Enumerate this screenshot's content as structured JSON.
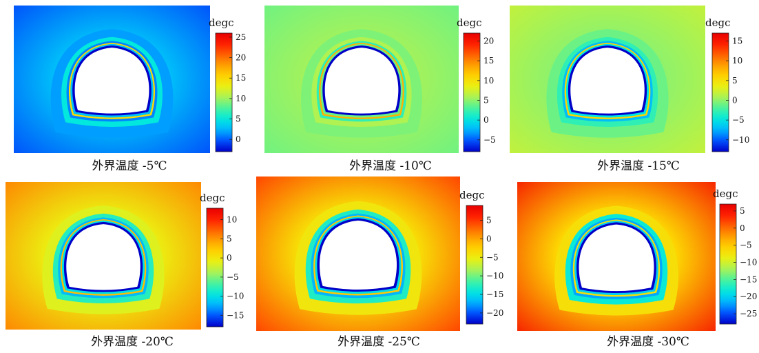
{
  "chart_data": [
    {
      "type": "heatmap",
      "subject": "tunnel cross-section temperature field",
      "caption": "外界温度 -5℃",
      "colorbar": {
        "title": "degc",
        "ticks": [
          0,
          5,
          10,
          15,
          20,
          25
        ],
        "tick_labels": [
          "0",
          "5",
          "10",
          "15",
          "20",
          "25"
        ],
        "range": [
          -3,
          26
        ]
      },
      "fields": {
        "outside_far": -0.6,
        "lining": 4,
        "rim": 15,
        "inner_ring": -3
      }
    },
    {
      "type": "heatmap",
      "subject": "tunnel cross-section temperature field",
      "caption": "外界温度 -10℃",
      "colorbar": {
        "title": "degc",
        "ticks": [
          -5,
          0,
          5,
          10,
          15,
          20
        ],
        "tick_labels": [
          "−5",
          "0",
          "5",
          "10",
          "15",
          "20"
        ],
        "range": [
          -8,
          22
        ]
      },
      "fields": {
        "outside_far": 4,
        "lining": 5,
        "rim": 13,
        "inner_ring": -8
      }
    },
    {
      "type": "heatmap",
      "subject": "tunnel cross-section temperature field",
      "caption": "外界温度 -15℃",
      "colorbar": {
        "title": "degc",
        "ticks": [
          -10,
          -5,
          0,
          5,
          10,
          15
        ],
        "tick_labels": [
          "−10",
          "−5",
          "0",
          "5",
          "10",
          "15"
        ],
        "range": [
          -13,
          17
        ]
      },
      "fields": {
        "outside_far": 2,
        "lining": -4,
        "rim": 6,
        "inner_ring": -13
      }
    },
    {
      "type": "heatmap",
      "subject": "tunnel cross-section temperature field",
      "caption": "外界温度 -20℃",
      "colorbar": {
        "title": "degc",
        "ticks": [
          -15,
          -10,
          -5,
          0,
          5,
          10
        ],
        "tick_labels": [
          "−15",
          "−10",
          "−5",
          "0",
          "5",
          "10"
        ],
        "range": [
          -18,
          13
        ]
      },
      "fields": {
        "outside_far": 6,
        "lining": -9,
        "rim": 3,
        "inner_ring": -18
      }
    },
    {
      "type": "heatmap",
      "subject": "tunnel cross-section temperature field",
      "caption": "外界温度 -25℃",
      "colorbar": {
        "title": "degc",
        "ticks": [
          -20,
          -15,
          -10,
          -5,
          0,
          5
        ],
        "tick_labels": [
          "−20",
          "−15",
          "−10",
          "−5",
          "0",
          "5"
        ],
        "range": [
          -23,
          9
        ]
      },
      "fields": {
        "outside_far": 5,
        "lining": -14,
        "rim": -2,
        "inner_ring": -23
      }
    },
    {
      "type": "heatmap",
      "subject": "tunnel cross-section temperature field",
      "caption": "外界温度 -30℃",
      "colorbar": {
        "title": "degc",
        "ticks": [
          -25,
          -20,
          -15,
          -10,
          -5,
          0,
          5
        ],
        "tick_labels": [
          "−25",
          "−20",
          "−15",
          "−10",
          "−5",
          "0",
          "5"
        ],
        "range": [
          -28,
          7
        ]
      },
      "fields": {
        "outside_far": 5,
        "lining": -19,
        "rim": -7,
        "inner_ring": -28
      }
    }
  ],
  "colormap": [
    "#0000c8",
    "#0050ff",
    "#00b4ff",
    "#00e8e0",
    "#46f2a0",
    "#a6f25a",
    "#e8f014",
    "#ffd400",
    "#ffa000",
    "#ff6000",
    "#ff1e00",
    "#e60000"
  ]
}
